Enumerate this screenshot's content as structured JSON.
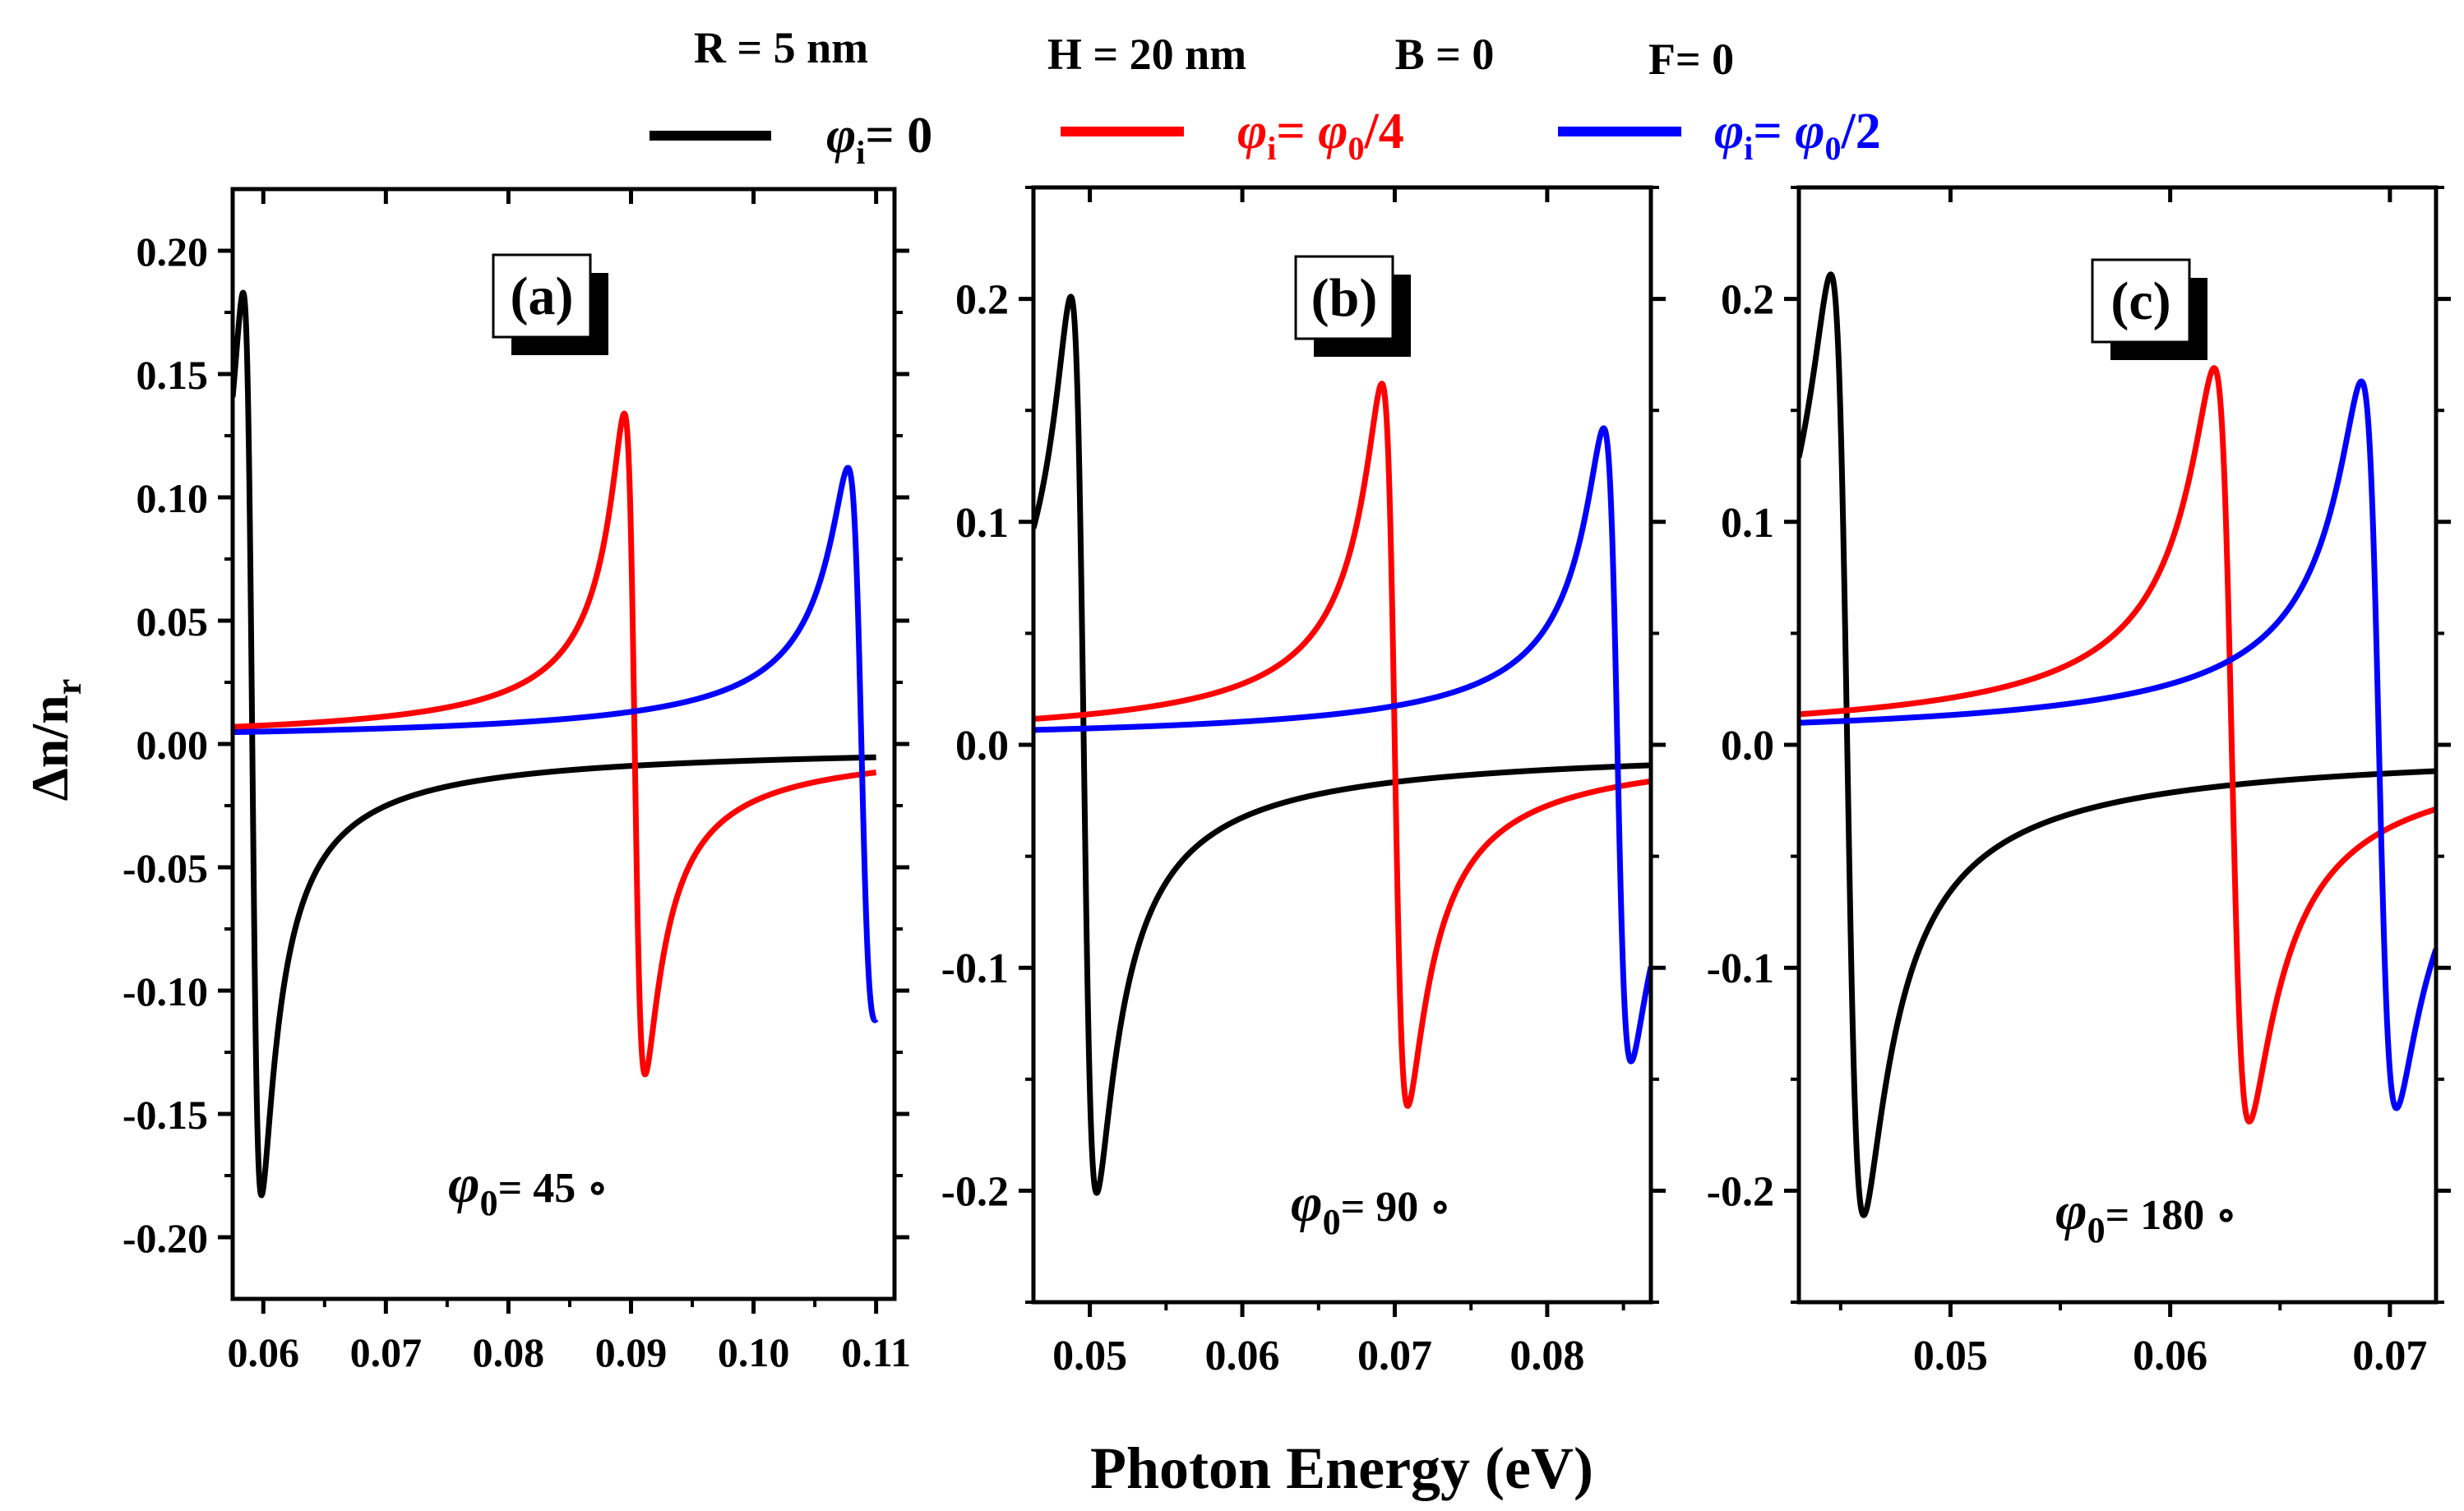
{
  "params": {
    "r": "R = 5 nm",
    "h": "H = 20 nm",
    "b": "B = 0",
    "f": "F= 0"
  },
  "legend": [
    {
      "pre": "",
      "mid": "= 0",
      "color": "#000000"
    },
    {
      "pre": "",
      "mid": "= ",
      "post": "/4",
      "color": "#ff0000"
    },
    {
      "pre": "",
      "mid": "= ",
      "post": "/2",
      "color": "#0000ff"
    }
  ],
  "symbols": {
    "phi": "φ",
    "i": "i",
    "zero": "0"
  },
  "colors": {
    "black": "#000000",
    "red": "#ff0000",
    "blue": "#0000ff"
  },
  "ylabel": {
    "main": "Δn/n",
    "sub": "r"
  },
  "xlabel": "Photon Energy (eV)",
  "chart_data": [
    {
      "type": "line",
      "panel_label": "(a)",
      "phi0_label": "= 45 ∘",
      "xlim": [
        0.0575,
        0.1115
      ],
      "ylim": [
        -0.225,
        0.225
      ],
      "xticks": [
        0.06,
        0.07,
        0.08,
        0.09,
        0.1,
        0.11
      ],
      "xtick_labels": [
        "0.06",
        "0.07",
        "0.08",
        "0.09",
        "0.10",
        "0.11"
      ],
      "yticks": [
        -0.2,
        -0.15,
        -0.1,
        -0.05,
        0.0,
        0.05,
        0.1,
        0.15,
        0.2
      ],
      "ytick_labels": [
        "-0.20",
        "-0.15",
        "-0.10",
        "-0.05",
        "0.00",
        "0.05",
        "0.10",
        "0.15",
        "0.20"
      ],
      "series": [
        {
          "name": "φi = 0",
          "color": "#000000",
          "x0": 0.0591,
          "amp": 0.183,
          "gamma": 0.00075,
          "tail": 0.0,
          "x_end": 0.11
        },
        {
          "name": "φi = φ0/4",
          "color": "#ff0000",
          "x0": 0.0903,
          "amp": 0.134,
          "gamma": 0.00085,
          "tail": 0.0,
          "x_end": 0.11
        },
        {
          "name": "φi = φ0/2",
          "color": "#0000ff",
          "x0": 0.1088,
          "amp": 0.112,
          "gamma": 0.0011,
          "tail": 0.0,
          "x_end": 0.11
        }
      ]
    },
    {
      "type": "line",
      "panel_label": "(b)",
      "phi0_label": "= 90 ∘",
      "xlim": [
        0.0463,
        0.0868
      ],
      "ylim": [
        -0.25,
        0.25
      ],
      "xticks": [
        0.05,
        0.06,
        0.07,
        0.08
      ],
      "xtick_labels": [
        "0.05",
        "0.06",
        "0.07",
        "0.08"
      ],
      "yticks": [
        -0.2,
        -0.1,
        0.0,
        0.1,
        0.2
      ],
      "ytick_labels": [
        "-0.2",
        "-0.1",
        "0.0",
        "0.1",
        "0.2"
      ],
      "series": [
        {
          "name": "φi = 0",
          "color": "#000000",
          "x0": 0.0496,
          "amp": 0.201,
          "gamma": 0.00085,
          "tail": 0.0,
          "x_end": 0.0868
        },
        {
          "name": "φi = φ0/4",
          "color": "#ff0000",
          "x0": 0.07,
          "amp": 0.162,
          "gamma": 0.00085,
          "tail": 0.0,
          "x_end": 0.0868
        },
        {
          "name": "φi = φ0/2",
          "color": "#0000ff",
          "x0": 0.0846,
          "amp": 0.142,
          "gamma": 0.0009,
          "tail": 0.0,
          "x_end": 0.0868
        }
      ]
    },
    {
      "type": "line",
      "panel_label": "(c)",
      "phi0_label": "= 180 ∘",
      "xlim": [
        0.0431,
        0.0721
      ],
      "ylim": [
        -0.25,
        0.25
      ],
      "xticks": [
        0.05,
        0.06,
        0.07
      ],
      "xtick_labels": [
        "0.05",
        "0.06",
        "0.07"
      ],
      "yticks": [
        -0.2,
        -0.1,
        0.0,
        0.1,
        0.2
      ],
      "ytick_labels": [
        "-0.2",
        "-0.1",
        "0.0",
        "0.1",
        "0.2"
      ],
      "series": [
        {
          "name": "φi = 0",
          "color": "#000000",
          "x0": 0.0453,
          "amp": 0.211,
          "gamma": 0.00075,
          "tail": 0.0,
          "x_end": 0.0721
        },
        {
          "name": "φi = φ0/4",
          "color": "#ff0000",
          "x0": 0.0628,
          "amp": 0.169,
          "gamma": 0.0008,
          "tail": 0.0,
          "x_end": 0.0721
        },
        {
          "name": "φi = φ0/2",
          "color": "#0000ff",
          "x0": 0.0695,
          "amp": 0.163,
          "gamma": 0.0008,
          "tail": 0.0,
          "x_end": 0.0721
        }
      ]
    }
  ]
}
